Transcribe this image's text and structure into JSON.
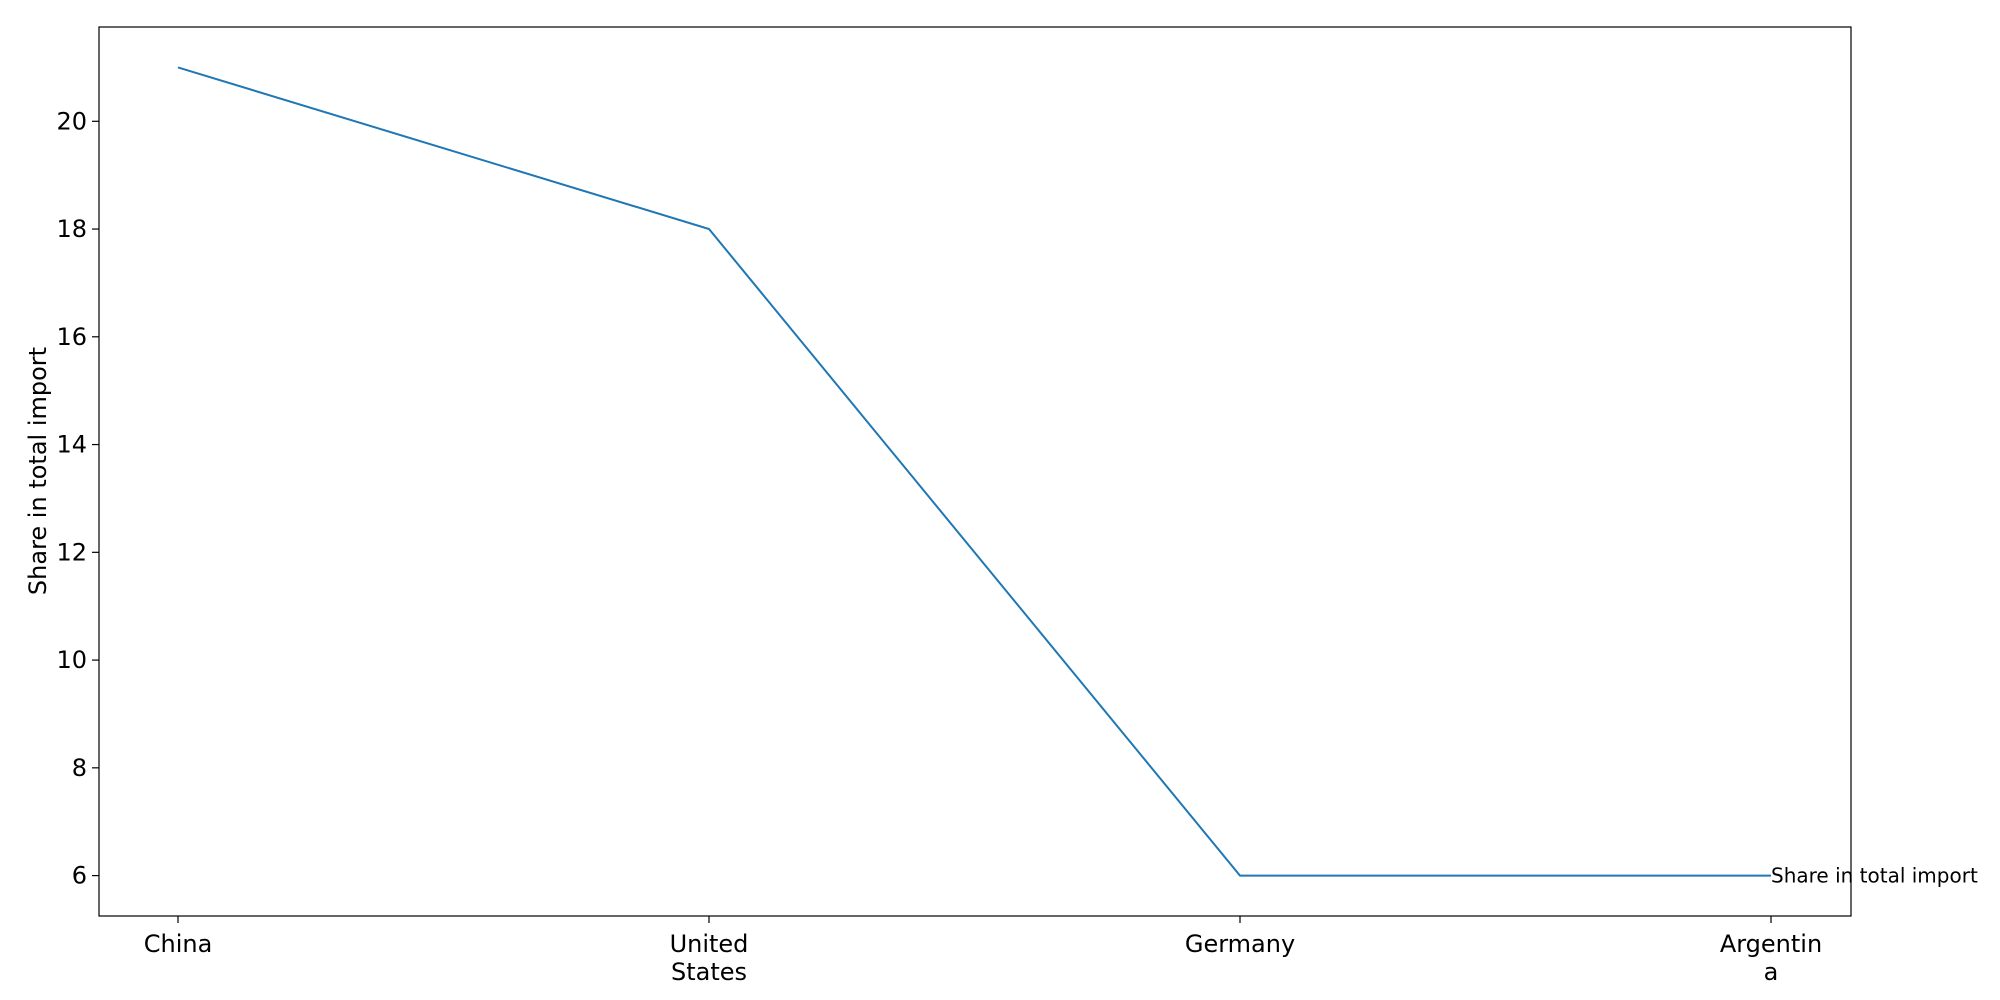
{
  "chart_data": {
    "type": "line",
    "categories": [
      "China",
      "United States",
      "Germany",
      "Argentina"
    ],
    "category_labels": [
      [
        "China"
      ],
      [
        "United",
        "States"
      ],
      [
        "Germany"
      ],
      [
        "Argentin",
        "a"
      ]
    ],
    "series": [
      {
        "name": "Share in total import",
        "values": [
          21,
          18,
          6,
          6
        ],
        "color": "#1f77b4"
      }
    ],
    "ylabel": "Share in total import",
    "ylim": [
      5.25,
      21.75
    ],
    "yticks": [
      6,
      8,
      10,
      12,
      14,
      16,
      18,
      20
    ],
    "grid": false,
    "series_label_position": "end-of-line"
  }
}
